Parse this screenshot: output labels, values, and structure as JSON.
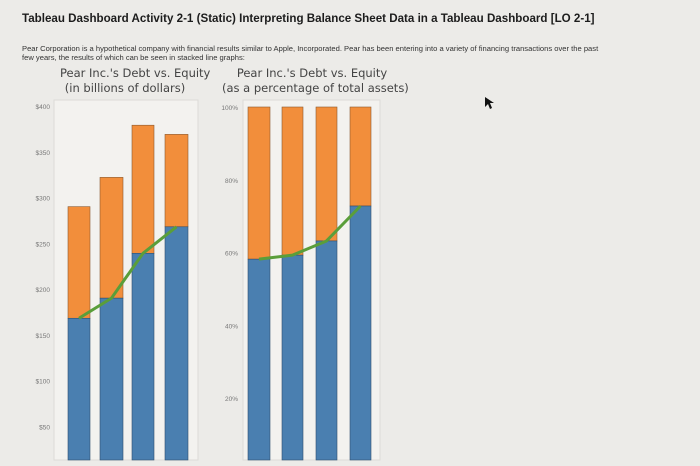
{
  "header": {
    "title": "Tableau Dashboard Activity 2-1 (Static) Interpreting Balance Sheet Data in a Tableau Dashboard [LO 2-1]",
    "intro": "Pear Corporation is a hypothetical company with financial results similar to Apple, Incorporated. Pear has been entering into a variety of financing transactions over the past few years, the results of which can be seen in stacked line graphs:"
  },
  "cursor_icon": "arrow-pointer",
  "colors": {
    "lower_segment": "#4a7fb0",
    "upper_segment": "#f28e3b",
    "line": "#5a9e3a"
  },
  "chart_data": [
    {
      "type": "bar",
      "stacked": true,
      "title": "Pear Inc.'s Debt vs. Equity",
      "subtitle": "(in billions of dollars)",
      "ylim": [
        0,
        400
      ],
      "yticks": [
        "$50",
        "$100",
        "$150",
        "$200",
        "$250",
        "$300",
        "$350",
        "$400"
      ],
      "ytick_values": [
        50,
        100,
        150,
        200,
        250,
        300,
        350,
        400
      ],
      "grid": false,
      "series": [
        {
          "values": [
            168,
            190,
            239,
            268
          ]
        },
        {
          "values": [
            122,
            132,
            140,
            101
          ]
        }
      ],
      "line_values": [
        168,
        190,
        239,
        268
      ]
    },
    {
      "type": "bar",
      "stacked": true,
      "title": "Pear Inc.'s Debt vs. Equity",
      "subtitle": "(as a percentage of total assets)",
      "ylim": [
        0,
        100
      ],
      "yticks": [
        "20%",
        "40%",
        "60%",
        "80%",
        "100%"
      ],
      "ytick_values": [
        20,
        40,
        60,
        80,
        100
      ],
      "grid": false,
      "series": [
        {
          "values": [
            58.2,
            59.3,
            63.2,
            72.8
          ]
        },
        {
          "values": [
            41.8,
            40.7,
            36.8,
            27.2
          ]
        }
      ],
      "line_values": [
        58.2,
        59.3,
        63.2,
        72.8
      ]
    }
  ]
}
